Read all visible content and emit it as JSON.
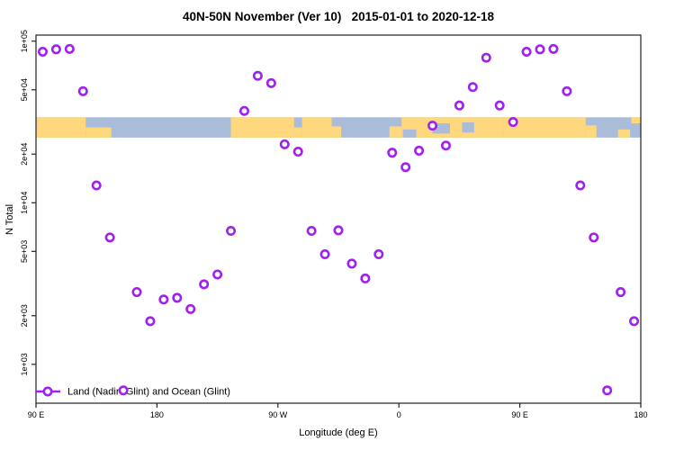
{
  "window": {
    "background": "#ffffff"
  },
  "title": "40N-50N November (Ver 10)   2015-01-01 to 2020-12-18",
  "chart_data": {
    "type": "scatter",
    "title": "40N-50N November (Ver 10)   2015-01-01 to 2020-12-18",
    "xlabel": "Longitude (deg E)",
    "ylabel": "N Total",
    "grid": false,
    "legend_position": "bottom-left-inside",
    "legend": {
      "label": "Land (Nadir&Glint) and Ocean (Glint)",
      "symbol": "line-with-open-circle"
    },
    "x_axis": {
      "range": [
        90,
        540
      ],
      "unit": "deg E (wraps past 180 to show 450 deg span)",
      "ticks": [
        {
          "pos": 90,
          "label": "90 E"
        },
        {
          "pos": 180,
          "label": "180"
        },
        {
          "pos": 270,
          "label": "90 W"
        },
        {
          "pos": 360,
          "label": "0"
        },
        {
          "pos": 450,
          "label": "90 E"
        },
        {
          "pos": 540,
          "label": "180"
        }
      ]
    },
    "y_axis": {
      "scale": "log",
      "range": [
        575,
        109000
      ],
      "ticks": [
        {
          "value": 1000,
          "label": "1e+03"
        },
        {
          "value": 2000,
          "label": "2e+03"
        },
        {
          "value": 5000,
          "label": "5e+03"
        },
        {
          "value": 10000,
          "label": "1e+04"
        },
        {
          "value": 20000,
          "label": "2e+04"
        },
        {
          "value": 50000,
          "label": "5e+04"
        },
        {
          "value": 100000,
          "label": "1e+05"
        }
      ]
    },
    "series": [
      {
        "name": "Land (Nadir&Glint) and Ocean (Glint)",
        "marker": "open-circle",
        "color": "#a020f0",
        "points": [
          [
            95,
            86000
          ],
          [
            105,
            89000
          ],
          [
            115,
            89500
          ],
          [
            125,
            49000
          ],
          [
            135,
            12800
          ],
          [
            145,
            6100
          ],
          [
            155,
            690
          ],
          [
            165,
            2800
          ],
          [
            175,
            1850
          ],
          [
            185,
            2520
          ],
          [
            195,
            2580
          ],
          [
            205,
            2200
          ],
          [
            215,
            3130
          ],
          [
            225,
            3600
          ],
          [
            235,
            6700
          ],
          [
            245,
            37000
          ],
          [
            255,
            61000
          ],
          [
            265,
            55000
          ],
          [
            275,
            23000
          ],
          [
            285,
            20700
          ],
          [
            295,
            6700
          ],
          [
            305,
            4800
          ],
          [
            315,
            6750
          ],
          [
            325,
            4200
          ],
          [
            335,
            3400
          ],
          [
            345,
            4800
          ],
          [
            355,
            20400
          ],
          [
            365,
            16600
          ],
          [
            375,
            21000
          ],
          [
            385,
            30000
          ],
          [
            395,
            22600
          ],
          [
            405,
            40000
          ],
          [
            415,
            52000
          ],
          [
            425,
            79000
          ],
          [
            435,
            40000
          ],
          [
            445,
            31600
          ],
          [
            455,
            86000
          ],
          [
            465,
            89000
          ],
          [
            475,
            89500
          ],
          [
            485,
            49000
          ],
          [
            495,
            12800
          ],
          [
            505,
            6100
          ],
          [
            515,
            690
          ],
          [
            525,
            2800
          ],
          [
            535,
            1850
          ]
        ]
      }
    ],
    "map_band": {
      "description": "latitude-strip world map 40N-50N drawn across plot",
      "value_range": [
        25300,
        33800
      ],
      "land_color": "#ffd87e",
      "ocean_color": "#a9bcd9",
      "land_segments": [
        {
          "from": 90,
          "to": 127,
          "top": 0,
          "bottom": 1
        },
        {
          "from": 127,
          "to": 146,
          "top": 0.5,
          "bottom": 1
        },
        {
          "from": 235,
          "to": 282,
          "top": 0,
          "bottom": 1
        },
        {
          "from": 282,
          "to": 288,
          "top": 0.5,
          "bottom": 1
        },
        {
          "from": 288,
          "to": 310,
          "top": 0,
          "bottom": 1
        },
        {
          "from": 310,
          "to": 317,
          "top": 0.45,
          "bottom": 1
        },
        {
          "from": 353,
          "to": 362,
          "top": 0.45,
          "bottom": 1
        },
        {
          "from": 362,
          "to": 438,
          "top": 0,
          "bottom": 1
        },
        {
          "from": 438,
          "to": 499,
          "top": 0,
          "bottom": 1
        },
        {
          "from": 499,
          "to": 507,
          "top": 0.4,
          "bottom": 1
        },
        {
          "from": 523,
          "to": 532,
          "top": 0.6,
          "bottom": 1
        },
        {
          "from": 533,
          "to": 540,
          "top": 0,
          "bottom": 0.3
        }
      ],
      "ocean_patches": [
        {
          "from": 363,
          "to": 373,
          "top": 0.6,
          "bottom": 1
        },
        {
          "from": 385,
          "to": 398,
          "top": 0.3,
          "bottom": 0.8
        },
        {
          "from": 407,
          "to": 416,
          "top": 0.25,
          "bottom": 0.75
        }
      ]
    },
    "style": {
      "marker_color": "#a020f0",
      "marker_fill": "#ffffff",
      "axis_color": "#222222"
    }
  }
}
